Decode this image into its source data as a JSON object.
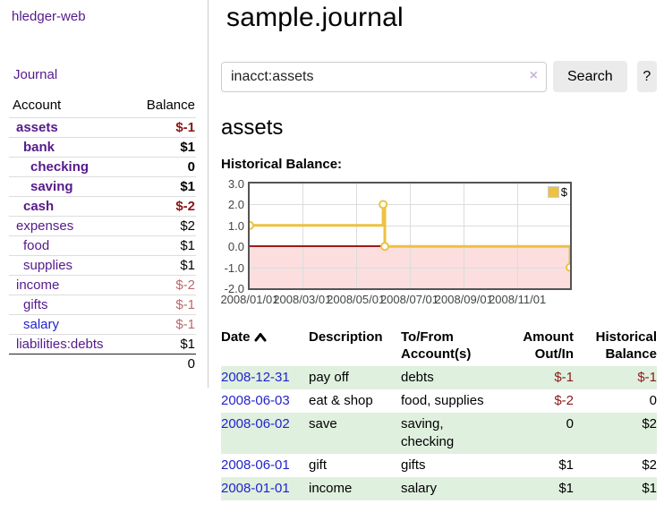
{
  "app": {
    "brand": "hledger-web",
    "nav_journal": "Journal"
  },
  "sidebar": {
    "accounts_header": {
      "account": "Account",
      "balance": "Balance"
    },
    "accounts": [
      {
        "label": "assets",
        "depth": 0,
        "bold": true,
        "link": "purple",
        "balance": "$-1",
        "balance_style": "neg-strong"
      },
      {
        "label": "bank",
        "depth": 1,
        "bold": true,
        "link": "purple",
        "balance": "$1",
        "balance_style": "pos"
      },
      {
        "label": "checking",
        "depth": 2,
        "bold": true,
        "link": "purple",
        "balance": "0",
        "balance_style": "pos"
      },
      {
        "label": "saving",
        "depth": 2,
        "bold": true,
        "link": "purple",
        "balance": "$1",
        "balance_style": "pos"
      },
      {
        "label": "cash",
        "depth": 1,
        "bold": true,
        "link": "purple",
        "balance": "$-2",
        "balance_style": "neg-strong"
      },
      {
        "label": "expenses",
        "depth": 0,
        "bold": false,
        "link": "purple",
        "balance": "$2",
        "balance_style": "pos"
      },
      {
        "label": "food",
        "depth": 1,
        "bold": false,
        "link": "purple",
        "balance": "$1",
        "balance_style": "pos"
      },
      {
        "label": "supplies",
        "depth": 1,
        "bold": false,
        "link": "purple",
        "balance": "$1",
        "balance_style": "pos"
      },
      {
        "label": "income",
        "depth": 0,
        "bold": false,
        "link": "purple",
        "balance": "$-2",
        "balance_style": "neg-soft"
      },
      {
        "label": "gifts",
        "depth": 1,
        "bold": false,
        "link": "purple",
        "balance": "$-1",
        "balance_style": "neg-soft"
      },
      {
        "label": "salary",
        "depth": 1,
        "bold": false,
        "link": "blue",
        "balance": "$-1",
        "balance_style": "neg-soft"
      },
      {
        "label": "liabilities:debts",
        "depth": 0,
        "bold": false,
        "link": "purple",
        "balance": "$1",
        "balance_style": "pos"
      }
    ],
    "total": "0"
  },
  "header": {
    "title": "sample.journal"
  },
  "search": {
    "value": "inacct:assets",
    "clear_icon": "×",
    "button": "Search",
    "help_button": "?"
  },
  "account_page": {
    "heading": "assets",
    "chart_label": "Historical Balance:"
  },
  "chart_data": {
    "type": "line",
    "style": "step",
    "title": "Historical Balance",
    "series": [
      {
        "name": "$",
        "color": "#edc240",
        "points": [
          {
            "date": "2008-01-01",
            "value": 1
          },
          {
            "date": "2008-06-01",
            "value": 2
          },
          {
            "date": "2008-06-03",
            "value": 0
          },
          {
            "date": "2008-12-31",
            "value": -1
          }
        ]
      }
    ],
    "x_range": [
      "2008-01-01",
      "2008-12-31"
    ],
    "y_range": [
      -2,
      3
    ],
    "x_ticks": [
      "2008/01/01",
      "2008/03/01",
      "2008/05/01",
      "2008/07/01",
      "2008/09/01",
      "2008/11/01"
    ],
    "y_ticks": [
      "3.0",
      "2.0",
      "1.0",
      "0.0",
      "-1.0",
      "-2.0"
    ],
    "legend": "$",
    "legend_position": "top-right",
    "grid": true,
    "negative_region_color": "#fcdede",
    "zero_line_color": "#9b1c1c",
    "border_color": "#545454"
  },
  "register": {
    "columns": {
      "date": "Date",
      "description": "Description",
      "account": "To/From Account(s)",
      "amount": "Amount Out/In",
      "balance": "Historical Balance"
    },
    "rows": [
      {
        "date": "2008-12-31",
        "description": "pay off",
        "accounts": "debts",
        "amount": "$-1",
        "amount_neg": true,
        "balance": "$-1",
        "balance_neg": true
      },
      {
        "date": "2008-06-03",
        "description": "eat & shop",
        "accounts": "food, supplies",
        "amount": "$-2",
        "amount_neg": true,
        "balance": "0",
        "balance_neg": false
      },
      {
        "date": "2008-06-02",
        "description": "save",
        "accounts": "saving, checking",
        "amount": "0",
        "amount_neg": false,
        "balance": "$2",
        "balance_neg": false
      },
      {
        "date": "2008-06-01",
        "description": "gift",
        "accounts": "gifts",
        "amount": "$1",
        "amount_neg": false,
        "balance": "$2",
        "balance_neg": false
      },
      {
        "date": "2008-01-01",
        "description": "income",
        "accounts": "salary",
        "amount": "$1",
        "amount_neg": false,
        "balance": "$1",
        "balance_neg": false
      }
    ]
  }
}
